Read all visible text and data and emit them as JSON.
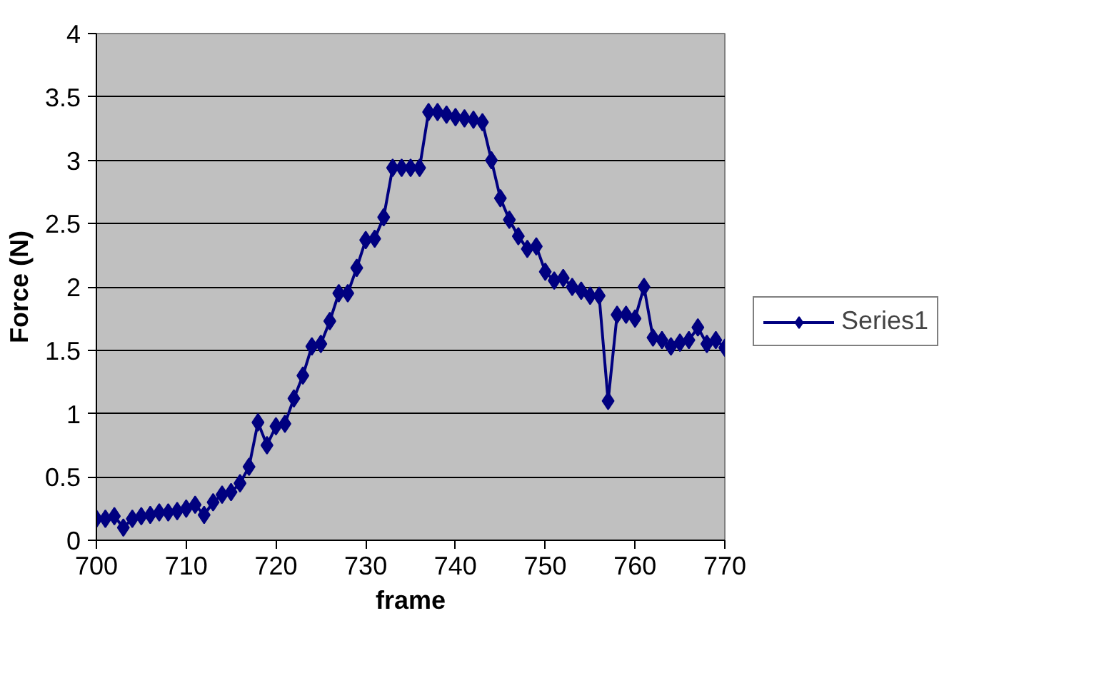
{
  "chart_data": {
    "type": "line",
    "xlabel": "frame",
    "ylabel": "Force (N)",
    "x": [
      700,
      701,
      702,
      703,
      704,
      705,
      706,
      707,
      708,
      709,
      710,
      711,
      712,
      713,
      714,
      715,
      716,
      717,
      718,
      719,
      720,
      721,
      722,
      723,
      724,
      725,
      726,
      727,
      728,
      729,
      730,
      731,
      732,
      733,
      734,
      735,
      736,
      737,
      738,
      739,
      740,
      741,
      742,
      743,
      744,
      745,
      746,
      747,
      748,
      749,
      750,
      751,
      752,
      753,
      754,
      755,
      756,
      757,
      758,
      759,
      760,
      761,
      762,
      763,
      764,
      765,
      766,
      767,
      768,
      769,
      770
    ],
    "series": [
      {
        "name": "Series1",
        "color": "#000080",
        "values": [
          0.17,
          0.17,
          0.19,
          0.1,
          0.17,
          0.19,
          0.2,
          0.22,
          0.22,
          0.23,
          0.25,
          0.28,
          0.2,
          0.3,
          0.36,
          0.38,
          0.45,
          0.58,
          0.93,
          0.75,
          0.9,
          0.92,
          1.12,
          1.3,
          1.53,
          1.55,
          1.73,
          1.95,
          1.95,
          2.15,
          2.37,
          2.38,
          2.55,
          2.94,
          2.94,
          2.94,
          2.94,
          3.38,
          3.38,
          3.36,
          3.34,
          3.33,
          3.32,
          3.3,
          3.0,
          2.7,
          2.53,
          2.4,
          2.3,
          2.32,
          2.12,
          2.05,
          2.07,
          2.0,
          1.97,
          1.93,
          1.93,
          1.1,
          1.78,
          1.78,
          1.75,
          2.0,
          1.6,
          1.58,
          1.53,
          1.56,
          1.58,
          1.68,
          1.55,
          1.58,
          1.52
        ]
      }
    ],
    "xlim": [
      700,
      770
    ],
    "xticks": [
      700,
      710,
      720,
      730,
      740,
      750,
      760,
      770
    ],
    "ylim": [
      0,
      4
    ],
    "yticks": [
      0,
      0.5,
      1,
      1.5,
      2,
      2.5,
      3,
      3.5,
      4
    ],
    "grid": "y",
    "legend": "right",
    "marker": "diamond",
    "line_style": "solid"
  }
}
